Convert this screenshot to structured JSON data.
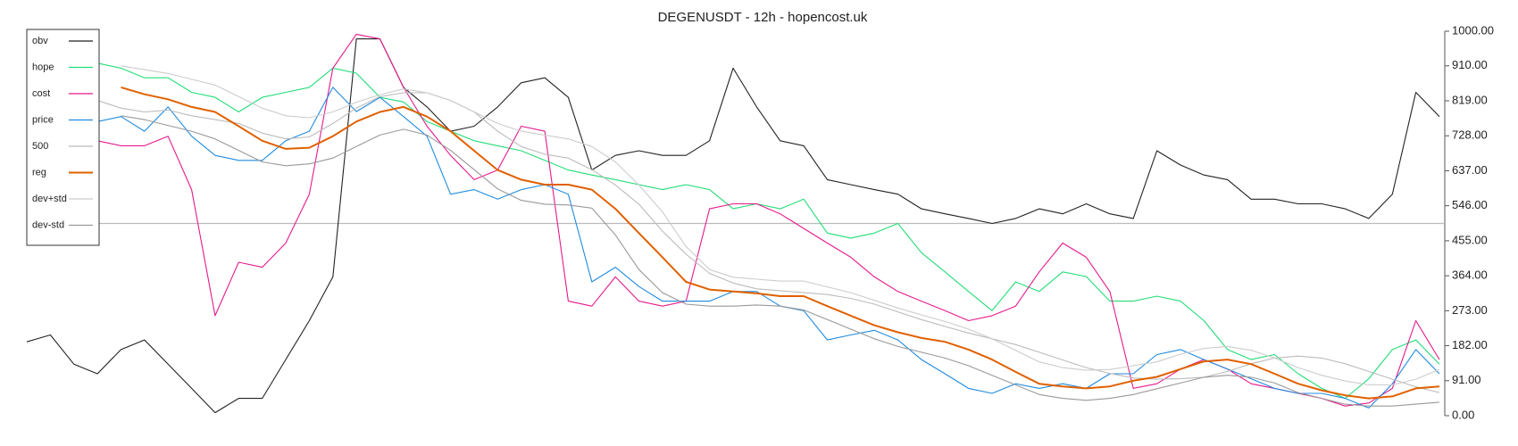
{
  "chart_data": {
    "type": "line",
    "title": "DEGENUSDT - 12h - hopencost.uk",
    "ylim": [
      0,
      1000
    ],
    "yticks": [
      {
        "value": 0,
        "label": "0.00"
      },
      {
        "value": 91,
        "label": "91.00"
      },
      {
        "value": 182,
        "label": "182.00"
      },
      {
        "value": 273,
        "label": "273.00"
      },
      {
        "value": 364,
        "label": "364.00"
      },
      {
        "value": 455,
        "label": "455.00"
      },
      {
        "value": 546,
        "label": "546.00"
      },
      {
        "value": 637,
        "label": "637.00"
      },
      {
        "value": 728,
        "label": "728.00"
      },
      {
        "value": 819,
        "label": "819.00"
      },
      {
        "value": 910,
        "label": "910.00"
      },
      {
        "value": 1000,
        "label": "1000.00"
      }
    ],
    "hline": 500,
    "hline_color": "#bbbbbb",
    "legend": "upper left",
    "series": [
      {
        "name": "obv",
        "color": "#222222",
        "values": [
          192,
          210,
          134,
          109,
          172,
          197,
          134,
          71,
          8,
          45,
          45,
          146,
          247,
          361,
          980,
          980,
          854,
          803,
          740,
          753,
          803,
          866,
          879,
          828,
          639,
          677,
          689,
          677,
          677,
          715,
          904,
          803,
          715,
          702,
          614,
          601,
          588,
          576,
          538,
          525,
          513,
          500,
          513,
          538,
          525,
          551,
          525,
          513,
          689,
          652,
          626,
          614,
          563,
          563,
          551,
          551,
          538,
          513,
          576,
          841,
          778
        ]
      },
      {
        "name": "hope",
        "color": "#22dd77",
        "values": [
          null,
          null,
          null,
          917,
          904,
          879,
          879,
          841,
          828,
          790,
          828,
          841,
          854,
          904,
          891,
          828,
          816,
          765,
          740,
          715,
          702,
          689,
          664,
          639,
          626,
          614,
          601,
          588,
          601,
          588,
          538,
          551,
          538,
          563,
          475,
          462,
          475,
          500,
          424,
          374,
          323,
          273,
          348,
          323,
          374,
          362,
          298,
          298,
          311,
          298,
          247,
          172,
          146,
          159,
          109,
          71,
          45,
          96,
          172,
          197,
          134
        ]
      },
      {
        "name": "cost",
        "color": "#e6198c",
        "values": [
          null,
          null,
          null,
          715,
          702,
          702,
          727,
          588,
          260,
          399,
          386,
          449,
          576,
          904,
          992,
          980,
          854,
          753,
          677,
          614,
          639,
          753,
          740,
          298,
          285,
          361,
          298,
          285,
          298,
          538,
          551,
          551,
          525,
          487,
          449,
          412,
          361,
          323,
          298,
          273,
          247,
          260,
          285,
          374,
          449,
          412,
          323,
          71,
          83,
          121,
          146,
          121,
          83,
          71,
          58,
          45,
          25,
          33,
          71,
          247,
          146
        ]
      },
      {
        "name": "price",
        "color": "#1f8be0",
        "values": [
          null,
          null,
          null,
          765,
          778,
          740,
          803,
          727,
          677,
          664,
          664,
          715,
          740,
          854,
          791,
          828,
          778,
          727,
          576,
          588,
          563,
          588,
          601,
          576,
          348,
          386,
          336,
          298,
          298,
          298,
          323,
          323,
          285,
          273,
          197,
          210,
          222,
          197,
          146,
          109,
          71,
          58,
          83,
          71,
          83,
          71,
          109,
          109,
          159,
          172,
          146,
          121,
          96,
          71,
          58,
          58,
          45,
          20,
          83,
          172,
          109
        ]
      },
      {
        "name": "500",
        "color": "#bbbbbb",
        "values": [
          null,
          null,
          null,
          820,
          800,
          790,
          795,
          780,
          770,
          760,
          735,
          720,
          725,
          760,
          800,
          830,
          840,
          840,
          820,
          790,
          740,
          700,
          680,
          670,
          640,
          600,
          550,
          480,
          420,
          370,
          345,
          330,
          325,
          320,
          315,
          305,
          290,
          270,
          250,
          232,
          215,
          200,
          185,
          165,
          145,
          125,
          110,
          98,
          95,
          96,
          100,
          115,
          135,
          150,
          155,
          150,
          135,
          115,
          95,
          75,
          60
        ]
      },
      {
        "name": "reg",
        "color": "#e06000",
        "width": 2,
        "values": [
          null,
          null,
          null,
          null,
          854,
          836,
          823,
          803,
          790,
          753,
          715,
          694,
          697,
          727,
          765,
          790,
          803,
          778,
          740,
          689,
          639,
          614,
          601,
          601,
          588,
          538,
          475,
          412,
          348,
          328,
          323,
          318,
          311,
          311,
          285,
          260,
          235,
          217,
          202,
          192,
          172,
          146,
          114,
          83,
          76,
          71,
          76,
          91,
          101,
          121,
          141,
          146,
          134,
          109,
          83,
          66,
          53,
          45,
          50,
          71,
          76
        ]
      },
      {
        "name": "dev+std",
        "color": "#cccccc",
        "values": [
          null,
          null,
          null,
          null,
          910,
          900,
          890,
          875,
          860,
          830,
          800,
          780,
          775,
          790,
          815,
          835,
          850,
          840,
          820,
          790,
          760,
          740,
          730,
          720,
          700,
          660,
          600,
          530,
          440,
          380,
          360,
          355,
          350,
          350,
          335,
          320,
          300,
          280,
          262,
          245,
          225,
          200,
          170,
          140,
          125,
          118,
          120,
          130,
          140,
          160,
          175,
          180,
          170,
          150,
          125,
          105,
          90,
          80,
          80,
          95,
          120
        ]
      },
      {
        "name": "dev-std",
        "color": "#999999",
        "values": [
          null,
          null,
          null,
          null,
          780,
          770,
          755,
          740,
          720,
          690,
          660,
          650,
          655,
          670,
          700,
          730,
          745,
          730,
          690,
          640,
          590,
          560,
          550,
          548,
          540,
          470,
          380,
          320,
          290,
          285,
          285,
          288,
          285,
          275,
          250,
          225,
          200,
          180,
          165,
          150,
          130,
          105,
          80,
          55,
          45,
          40,
          45,
          55,
          70,
          85,
          100,
          105,
          100,
          85,
          60,
          45,
          30,
          25,
          25,
          30,
          35
        ]
      }
    ]
  }
}
